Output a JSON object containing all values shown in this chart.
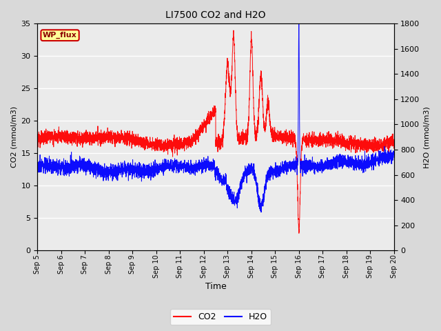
{
  "title": "LI7500 CO2 and H2O",
  "xlabel": "Time",
  "ylabel_left": "CO2 (mmol/m3)",
  "ylabel_right": "H2O (mmol/m3)",
  "ylim_left": [
    0,
    35
  ],
  "ylim_right": [
    0,
    1800
  ],
  "yticks_left": [
    0,
    5,
    10,
    15,
    20,
    25,
    30,
    35
  ],
  "yticks_right": [
    0,
    200,
    400,
    600,
    800,
    1000,
    1200,
    1400,
    1600,
    1800
  ],
  "x_tick_labels": [
    "Sep 5",
    "Sep 6",
    "Sep 7",
    "Sep 8",
    "Sep 9",
    "Sep 10",
    "Sep 11",
    "Sep 12",
    "Sep 13",
    "Sep 14",
    "Sep 15",
    "Sep 16",
    "Sep 17",
    "Sep 18",
    "Sep 19",
    "Sep 20"
  ],
  "legend_labels": [
    "CO2",
    "H2O"
  ],
  "co2_color": "red",
  "h2o_color": "blue",
  "fig_facecolor": "#d9d9d9",
  "ax_facecolor": "#ebebeb",
  "grid_color": "white",
  "annotation_text": "WP_flux",
  "annotation_fontsize": 8,
  "annotation_color": "darkred",
  "annotation_bgcolor": "#ffff99",
  "annotation_edgecolor": "#cc0000"
}
